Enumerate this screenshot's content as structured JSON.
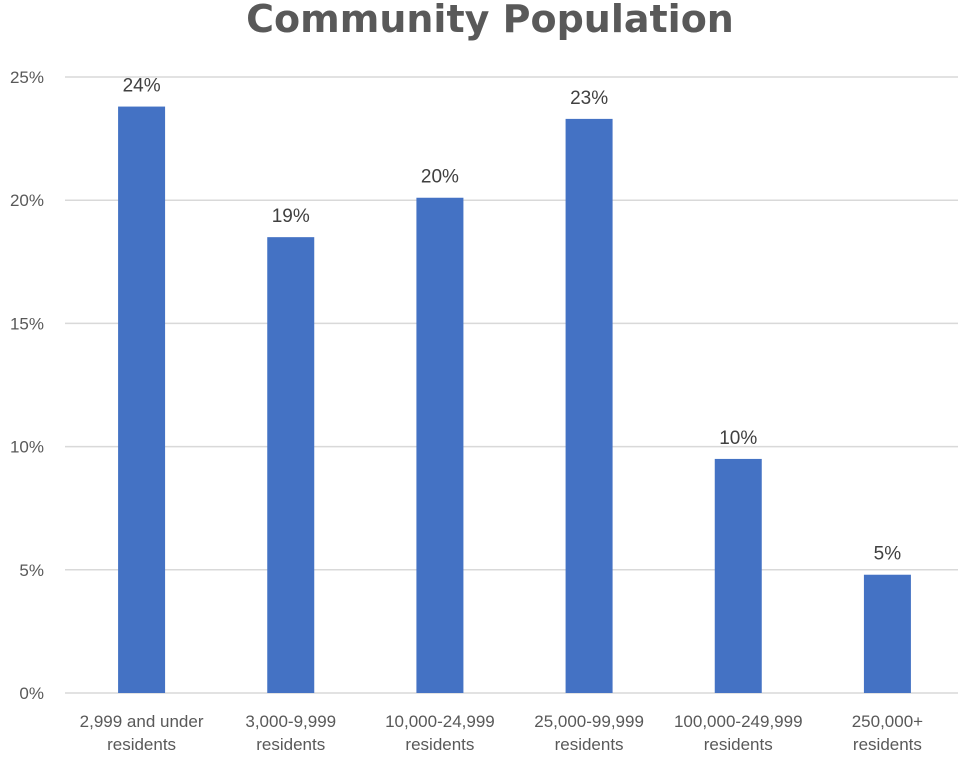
{
  "chart_data": {
    "type": "bar",
    "title": "Community Population",
    "xlabel": "",
    "ylabel": "",
    "categories": [
      [
        "2,999 and under",
        "residents"
      ],
      [
        "3,000-9,999",
        "residents"
      ],
      [
        "10,000-24,999",
        "residents"
      ],
      [
        "25,000-99,999",
        "residents"
      ],
      [
        "100,000-249,999",
        "residents"
      ],
      [
        "250,000+",
        "residents"
      ]
    ],
    "values": [
      23.8,
      18.5,
      20.1,
      23.3,
      9.5,
      4.8
    ],
    "data_labels": [
      "24%",
      "19%",
      "20%",
      "23%",
      "10%",
      "5%"
    ],
    "ylim": [
      0,
      25
    ],
    "yticks": [
      0,
      5,
      10,
      15,
      20,
      25
    ],
    "ytick_labels": [
      "0%",
      "5%",
      "10%",
      "15%",
      "20%",
      "25%"
    ],
    "grid": true,
    "legend": "none",
    "colors": {
      "bar": "#4472c4",
      "grid": "#d9d9d9",
      "text": "#595959"
    }
  }
}
